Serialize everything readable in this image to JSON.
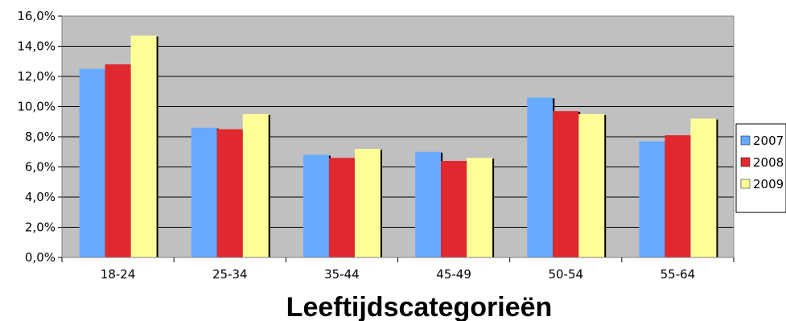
{
  "chart_data": {
    "type": "bar",
    "title": "",
    "xlabel": "Leeftijdscategorieën",
    "ylabel": "",
    "ylim": [
      0,
      16
    ],
    "yticks": [
      0,
      2,
      4,
      6,
      8,
      10,
      12,
      14,
      16
    ],
    "ytick_labels": [
      "0,0%",
      "2,0%",
      "4,0%",
      "6,0%",
      "8,0%",
      "10,0%",
      "12,0%",
      "14,0%",
      "16,0%"
    ],
    "categories": [
      "18-24",
      "25-34",
      "35-44",
      "45-49",
      "50-54",
      "55-64"
    ],
    "series": [
      {
        "name": "2007",
        "color": "#66aaff",
        "values": [
          12.5,
          8.6,
          6.8,
          7.0,
          10.6,
          7.7
        ]
      },
      {
        "name": "2008",
        "color": "#e0282e",
        "values": [
          12.8,
          8.5,
          6.6,
          6.4,
          9.7,
          8.1
        ]
      },
      {
        "name": "2009",
        "color": "#ffff99",
        "values": [
          14.7,
          9.5,
          7.2,
          6.6,
          9.5,
          9.2
        ]
      }
    ],
    "grid": true,
    "plot_background": "#c0c0c0",
    "legend_position": "right"
  }
}
